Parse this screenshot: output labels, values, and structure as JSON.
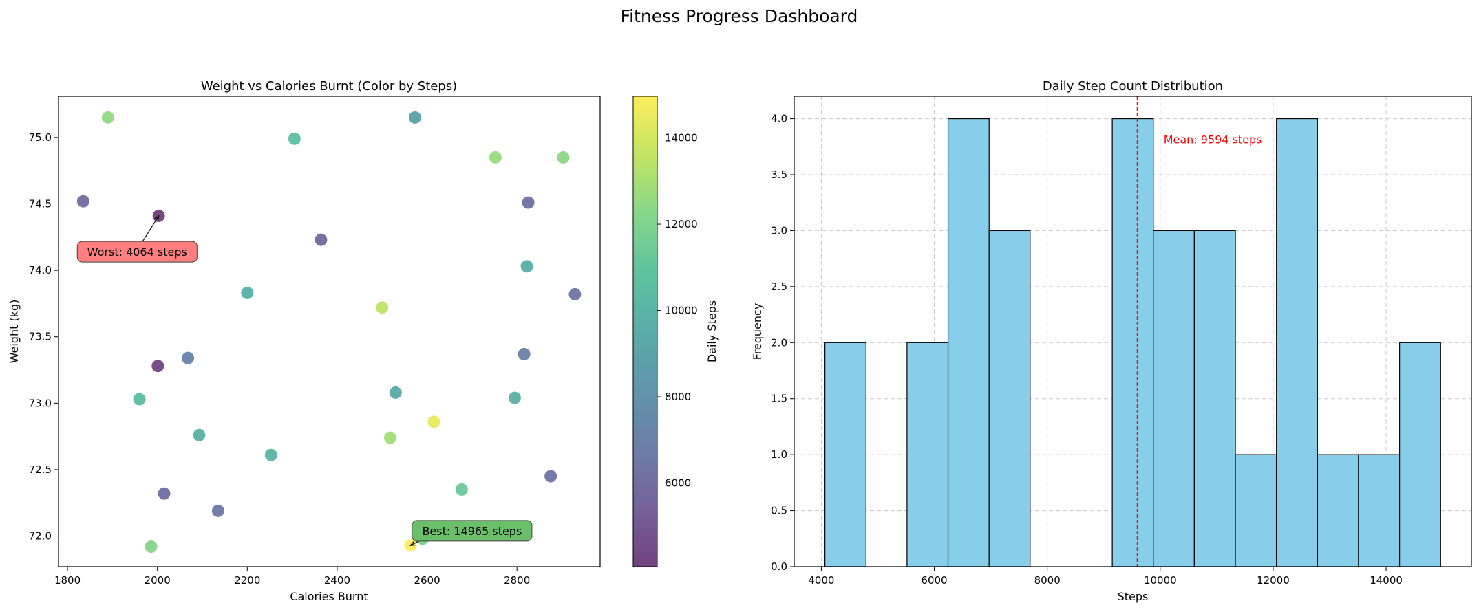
{
  "suptitle": "Fitness Progress Dashboard",
  "chart_data": [
    {
      "type": "scatter",
      "title": "Weight vs Calories Burnt (Color by Steps)",
      "xlabel": "Calories Burnt",
      "ylabel": "Weight (kg)",
      "xlim": [
        1780,
        2985
      ],
      "ylim": [
        71.77,
        75.31
      ],
      "xticks": [
        1800,
        2000,
        2200,
        2400,
        2600,
        2800
      ],
      "yticks": [
        72.0,
        72.5,
        73.0,
        73.5,
        74.0,
        74.5,
        75.0
      ],
      "colormap": "viridis",
      "colorbar": {
        "label": "Daily Steps",
        "range": [
          4064,
          14965
        ],
        "ticks": [
          6000,
          8000,
          10000,
          12000,
          14000
        ]
      },
      "points": [
        {
          "x": 1835,
          "y": 74.52,
          "steps": 6000
        },
        {
          "x": 1890,
          "y": 75.15,
          "steps": 12500
        },
        {
          "x": 2003,
          "y": 74.41,
          "steps": 4064
        },
        {
          "x": 2305,
          "y": 74.99,
          "steps": 10800
        },
        {
          "x": 2573,
          "y": 75.15,
          "steps": 8900
        },
        {
          "x": 2752,
          "y": 74.85,
          "steps": 12700
        },
        {
          "x": 2903,
          "y": 74.85,
          "steps": 12400
        },
        {
          "x": 2825,
          "y": 74.51,
          "steps": 6200
        },
        {
          "x": 2364,
          "y": 74.23,
          "steps": 5800
        },
        {
          "x": 2822,
          "y": 74.03,
          "steps": 9600
        },
        {
          "x": 2200,
          "y": 73.83,
          "steps": 9700
        },
        {
          "x": 2500,
          "y": 73.72,
          "steps": 13500
        },
        {
          "x": 2929,
          "y": 73.82,
          "steps": 6500
        },
        {
          "x": 2001,
          "y": 73.28,
          "steps": 4300
        },
        {
          "x": 2068,
          "y": 73.34,
          "steps": 7100
        },
        {
          "x": 2816,
          "y": 73.37,
          "steps": 7000
        },
        {
          "x": 1960,
          "y": 73.03,
          "steps": 10600
        },
        {
          "x": 2530,
          "y": 73.08,
          "steps": 9300
        },
        {
          "x": 2795,
          "y": 73.04,
          "steps": 9800
        },
        {
          "x": 2615,
          "y": 72.86,
          "steps": 14500
        },
        {
          "x": 2093,
          "y": 72.76,
          "steps": 9900
        },
        {
          "x": 2518,
          "y": 72.74,
          "steps": 12900
        },
        {
          "x": 2253,
          "y": 72.61,
          "steps": 10100
        },
        {
          "x": 2875,
          "y": 72.45,
          "steps": 6300
        },
        {
          "x": 2677,
          "y": 72.35,
          "steps": 11300
        },
        {
          "x": 2015,
          "y": 72.32,
          "steps": 6100
        },
        {
          "x": 2135,
          "y": 72.19,
          "steps": 6600
        },
        {
          "x": 2590,
          "y": 71.98,
          "steps": 12000
        },
        {
          "x": 1986,
          "y": 71.92,
          "steps": 12200
        },
        {
          "x": 2563,
          "y": 71.93,
          "steps": 14965
        }
      ],
      "annotations": [
        {
          "text": "Worst: 4064 steps",
          "x": 2003,
          "y": 74.41,
          "box_color": "#ff7f7f",
          "text_anchor": [
            1955,
            74.14
          ]
        },
        {
          "text": "Best: 14965 steps",
          "x": 2563,
          "y": 71.93,
          "box_color": "#6abf69",
          "text_anchor": [
            2700,
            72.04
          ]
        }
      ]
    },
    {
      "type": "bar",
      "title": "Daily Step Count Distribution",
      "xlabel": "Steps",
      "ylabel": "Frequency",
      "xlim": [
        3520,
        15510
      ],
      "ylim": [
        0,
        4.2
      ],
      "xticks": [
        4000,
        6000,
        8000,
        10000,
        12000,
        14000
      ],
      "yticks": [
        0.0,
        0.5,
        1.0,
        1.5,
        2.0,
        2.5,
        3.0,
        3.5,
        4.0
      ],
      "bar_color": "#87ceeb",
      "grid": true,
      "bin_edges": [
        4064,
        4791,
        5517,
        6244,
        6971,
        7697,
        8424,
        9151,
        9878,
        10604,
        11331,
        12058,
        12785,
        13511,
        14238,
        14965
      ],
      "counts": [
        2,
        0,
        2,
        4,
        3,
        0,
        0,
        4,
        3,
        3,
        1,
        4,
        1,
        1,
        2
      ],
      "mean": 9594,
      "mean_label": "Mean: 9594 steps",
      "mean_color": "#ff0000"
    }
  ]
}
